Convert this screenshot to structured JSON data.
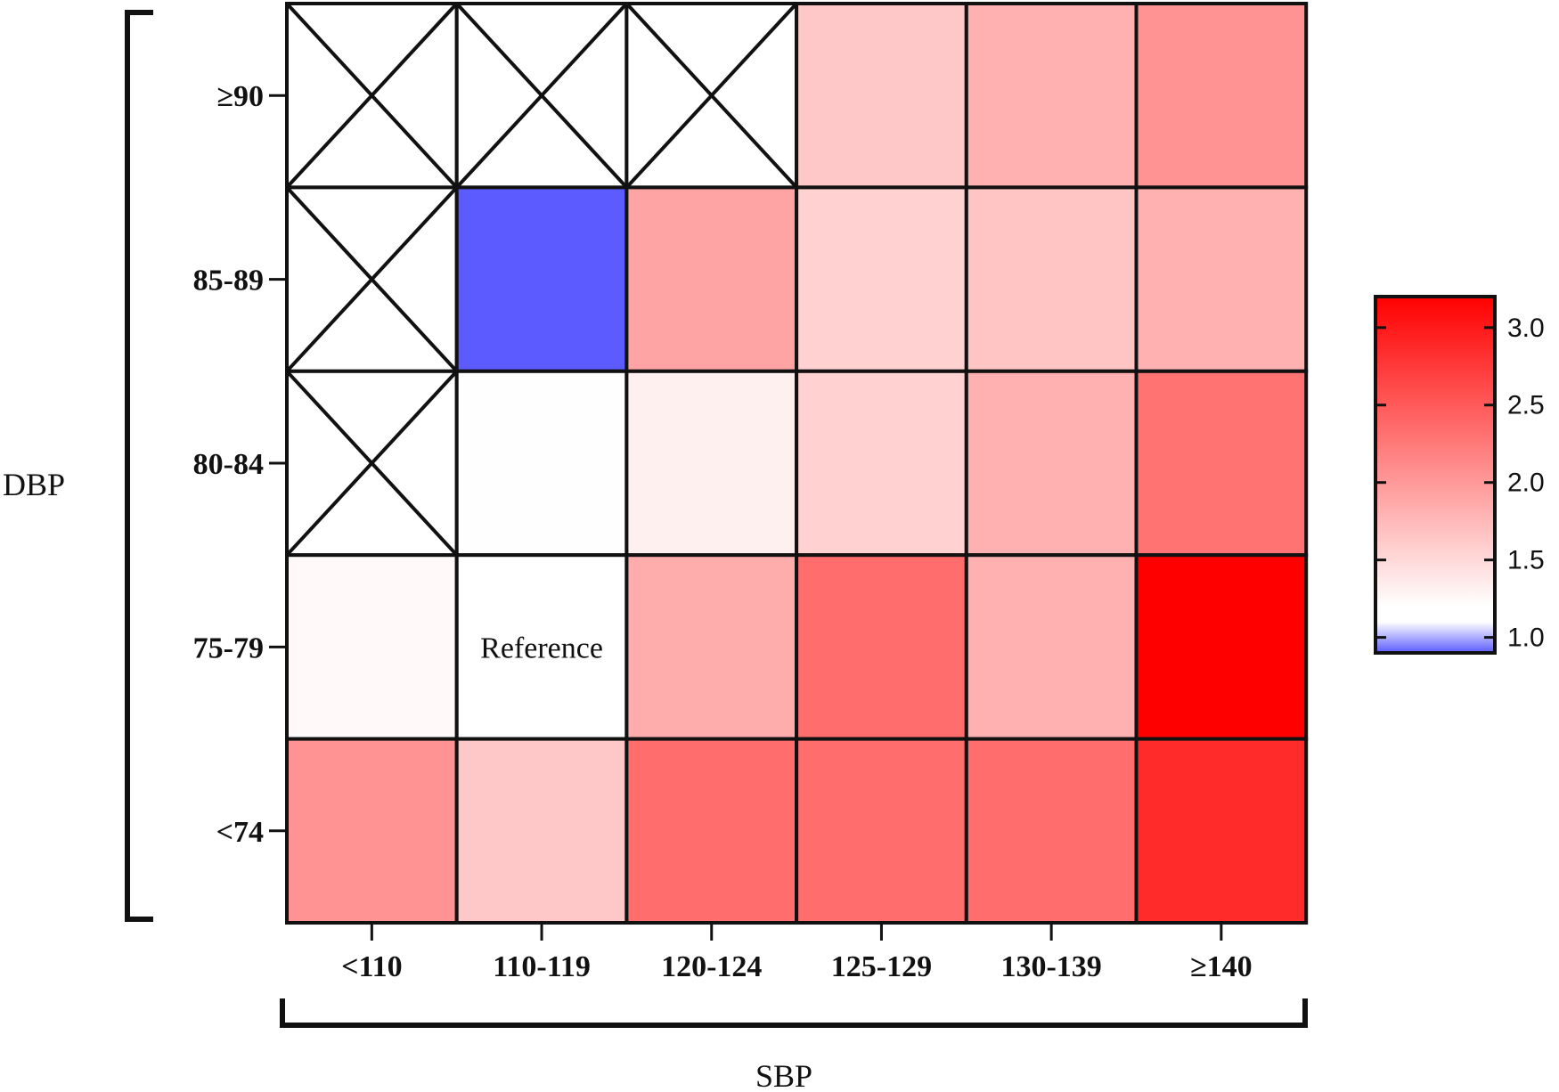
{
  "chart_data": {
    "type": "heatmap",
    "title": "",
    "xlabel": "SBP",
    "ylabel": "DBP",
    "x_categories": [
      "<110",
      "110-119",
      "120-124",
      "125-129",
      "130-139",
      "≥140"
    ],
    "y_categories": [
      "≥90",
      "85-89",
      "80-84",
      "75-79",
      "<74"
    ],
    "values": [
      [
        null,
        null,
        null,
        1.45,
        1.65,
        1.9
      ],
      [
        null,
        0.9,
        1.75,
        1.38,
        1.48,
        1.65
      ],
      [
        null,
        1.01,
        1.12,
        1.38,
        1.65,
        2.15
      ],
      [
        1.05,
        1.0,
        1.68,
        2.2,
        1.65,
        3.1
      ],
      [
        1.9,
        1.45,
        2.2,
        2.2,
        2.2,
        2.75
      ]
    ],
    "annotations": [
      {
        "row": "75-79",
        "col": "110-119",
        "text": "Reference"
      }
    ],
    "colorbar": {
      "ticks": [
        1.0,
        1.5,
        2.0,
        2.5,
        3.0
      ],
      "tick_labels": [
        "1.0",
        "1.5",
        "2.0",
        "2.5",
        "3.0"
      ],
      "range": [
        0.9,
        3.2
      ],
      "low_color": "#5b5bff",
      "mid_color": "#ffffff",
      "high_color": "#ff0000"
    },
    "missing_marker": "X"
  }
}
